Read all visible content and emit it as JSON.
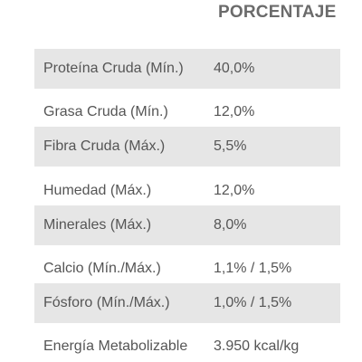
{
  "table": {
    "header": "PORCENTAJE",
    "rows": [
      {
        "name": "Proteína Cruda (Mín.)",
        "value": "40,0%"
      },
      {
        "name": "Grasa Cruda (Mín.)",
        "value": "12,0%"
      },
      {
        "name": "Fibra Cruda (Máx.)",
        "value": "5,5%"
      },
      {
        "name": "Humedad (Máx.)",
        "value": "12,0%"
      },
      {
        "name": "Minerales (Máx.)",
        "value": "8,0%"
      },
      {
        "name": "Calcio (Mín./Máx.)",
        "value": "1,1% / 1,5%"
      },
      {
        "name": "Fósforo (Mín./Máx.)",
        "value": "1,0% / 1,5%"
      },
      {
        "name": "Energía Metabolizable",
        "value": "3.950 kcal/kg"
      }
    ],
    "colors": {
      "shaded_row": "#e6e6e6",
      "plain_row": "#ffffff",
      "text": "#555555",
      "header_text": "#6b6b6b"
    }
  }
}
